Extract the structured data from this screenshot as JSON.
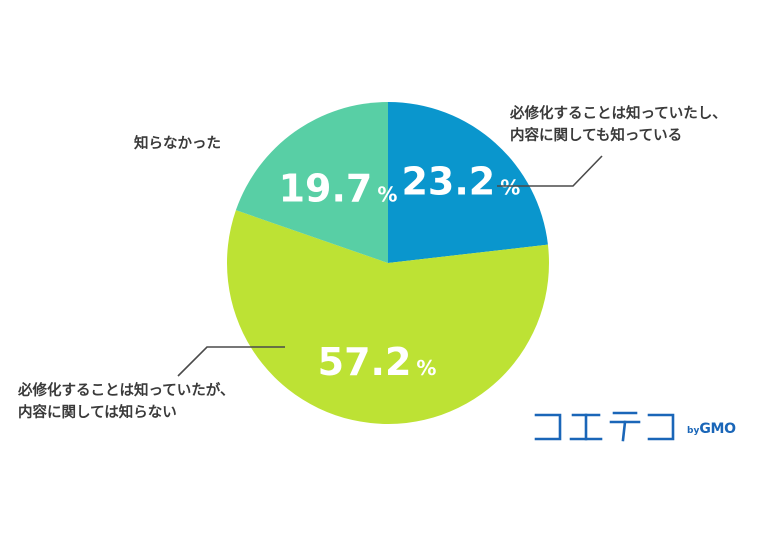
{
  "chart_data": {
    "type": "pie",
    "start_angle_deg": 0,
    "direction": "clockwise",
    "slices": [
      {
        "label_lines": [
          "必修化することは知っていたし、",
          "内容に関しても知っている"
        ],
        "value": 23.2,
        "value_text": "23.2",
        "unit": "%",
        "color": "#0a96cd"
      },
      {
        "label_lines": [
          "必修化することは知っていたが、",
          "内容に関しては知らない"
        ],
        "value": 57.2,
        "value_text": "57.2",
        "unit": "%",
        "color": "#bde234"
      },
      {
        "label_lines": [
          "知らなかった"
        ],
        "value": 19.7,
        "value_text": "19.7",
        "unit": "%",
        "color": "#58cfa5"
      }
    ]
  },
  "logo": {
    "by": "by",
    "brand": "GMO",
    "color": "#1a66b8"
  }
}
